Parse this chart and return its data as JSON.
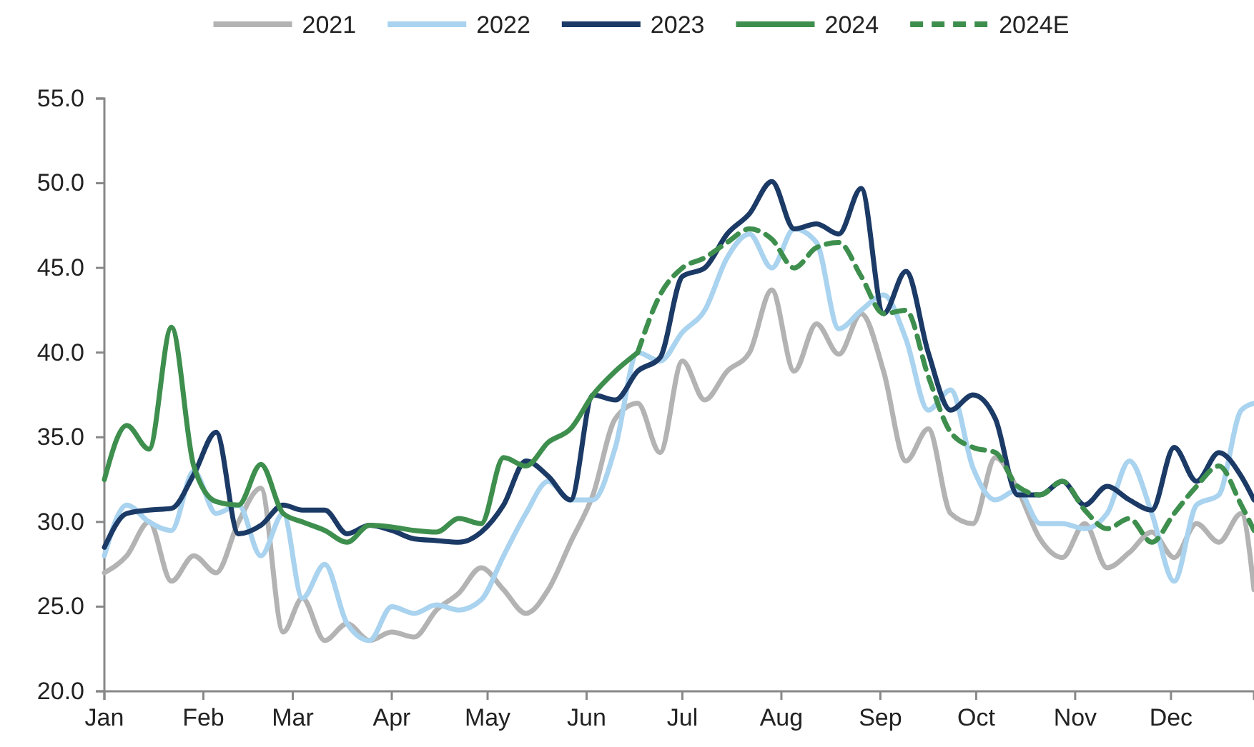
{
  "chart_data": {
    "type": "line",
    "x": [
      "--01-01",
      "--01-08",
      "--01-15",
      "--01-22",
      "--01-29",
      "--02-05",
      "--02-12",
      "--02-19",
      "--02-26",
      "--03-04",
      "--03-11",
      "--03-18",
      "--03-25",
      "--04-01",
      "--04-08",
      "--04-15",
      "--04-22",
      "--04-29",
      "--05-06",
      "--05-13",
      "--05-20",
      "--05-27",
      "--06-03",
      "--06-10",
      "--06-17",
      "--06-24",
      "--07-01",
      "--07-08",
      "--07-15",
      "--07-22",
      "--07-29",
      "--08-05",
      "--08-12",
      "--08-19",
      "--08-26",
      "--09-02",
      "--09-09",
      "--09-16",
      "--09-23",
      "--09-30",
      "--10-07",
      "--10-14",
      "--10-21",
      "--10-28",
      "--11-04",
      "--11-11",
      "--11-18",
      "--11-25",
      "--12-02",
      "--12-09",
      "--12-16",
      "--12-23",
      "--12-27"
    ],
    "series": [
      {
        "name": "2021",
        "color": "#b3b3b3",
        "values": [
          27,
          28,
          30,
          26.5,
          28,
          27,
          30,
          32,
          23.5,
          25.5,
          23,
          24,
          23,
          23.5,
          23.2,
          24.8,
          25.8,
          27.3,
          26,
          24.6,
          26,
          28.8,
          31.6,
          36.1,
          37,
          34.1,
          39.5,
          37.2,
          38.9,
          40,
          43.7,
          38.9,
          41.7,
          39.9,
          42.3,
          38.9,
          33.6,
          35.5,
          30.5,
          29.9,
          33.8,
          31.9,
          29,
          27.9,
          29.9,
          27.3,
          28.2,
          29.4,
          27.9,
          29.9,
          28.8,
          30.5,
          26
        ]
      },
      {
        "name": "2022",
        "color": "#a9d3ef",
        "values": [
          28,
          31,
          30,
          29.5,
          33,
          30.5,
          31,
          28,
          30.5,
          25.5,
          27.5,
          24,
          23,
          25,
          24.6,
          25.1,
          24.8,
          25.4,
          28,
          30.5,
          32.4,
          31.3,
          31.3,
          34.4,
          40,
          39.5,
          41.2,
          42.5,
          45.6,
          47,
          45,
          47.3,
          46.5,
          41.4,
          42.5,
          43.4,
          40.8,
          36.6,
          37.8,
          33.2,
          31.3,
          31.9,
          29.9,
          29.9,
          29.6,
          30.5,
          33.6,
          30.5,
          26.5,
          31,
          31.6,
          36.6,
          37
        ]
      },
      {
        "name": "2023",
        "color": "#1b3a66",
        "values": [
          28.5,
          30.5,
          30.7,
          30.8,
          32.8,
          35.3,
          29.3,
          29.8,
          31,
          30.7,
          30.7,
          29.3,
          29.8,
          29.5,
          29,
          28.9,
          28.8,
          29.4,
          31,
          33.6,
          32.7,
          31.3,
          37.5,
          37.2,
          38.9,
          39.7,
          44.5,
          45,
          47,
          48.2,
          50.1,
          47.3,
          47.6,
          47,
          49.7,
          42.3,
          44.8,
          40,
          36.6,
          37.5,
          36.1,
          31.6,
          31.6,
          32.4,
          31,
          32.1,
          31.3,
          30.7,
          34.4,
          32.4,
          34.1,
          32.7,
          31.3
        ]
      },
      {
        "name": "2024",
        "color": "#3e8f4e",
        "values": [
          32.5,
          35.7,
          34.3,
          41.5,
          33.3,
          31.2,
          31,
          33.4,
          30.5,
          30,
          29.5,
          28.8,
          29.8,
          29.7,
          29.5,
          29.4,
          30.2,
          29.9,
          33.8,
          33.3,
          34.7,
          35.5,
          37.5,
          38.9,
          40,
          null,
          null,
          null,
          null,
          null,
          null,
          null,
          null,
          null,
          null,
          null,
          null,
          null,
          null,
          null,
          null,
          null,
          null,
          null,
          null,
          null,
          null,
          null,
          null,
          null,
          null,
          null,
          null
        ]
      },
      {
        "name": "2024E",
        "color": "#3e8f4e",
        "line_style": "dashed",
        "values": [
          null,
          null,
          null,
          null,
          null,
          null,
          null,
          null,
          null,
          null,
          null,
          null,
          null,
          null,
          null,
          null,
          null,
          null,
          null,
          null,
          null,
          null,
          null,
          null,
          40,
          43.4,
          45,
          45.6,
          46.5,
          47.3,
          46.7,
          45,
          46.2,
          46.5,
          44.5,
          42.3,
          42.5,
          38.6,
          35.3,
          34.4,
          34.1,
          32.1,
          31.6,
          32.4,
          30.7,
          29.6,
          30.2,
          28.8,
          30.5,
          32.1,
          33.3,
          31,
          29.5
        ]
      }
    ],
    "xlim": [
      "--01-01",
      "--12-27"
    ],
    "xticks": [
      {
        "value": "--01-01",
        "label": "Jan"
      },
      {
        "value": "--02-01",
        "label": "Feb"
      },
      {
        "value": "--03-01",
        "label": "Mar"
      },
      {
        "value": "--04-01",
        "label": "Apr"
      },
      {
        "value": "--05-01",
        "label": "May"
      },
      {
        "value": "--06-01",
        "label": "Jun"
      },
      {
        "value": "--07-01",
        "label": "Jul"
      },
      {
        "value": "--08-01",
        "label": "Aug"
      },
      {
        "value": "--09-01",
        "label": "Sep"
      },
      {
        "value": "--10-01",
        "label": "Oct"
      },
      {
        "value": "--11-01",
        "label": "Nov"
      },
      {
        "value": "--12-01",
        "label": "Dec"
      }
    ],
    "ylim": [
      20,
      55
    ],
    "yticks": [
      {
        "value": 20,
        "label": "20.0"
      },
      {
        "value": 25,
        "label": "25.0"
      },
      {
        "value": 30,
        "label": "30.0"
      },
      {
        "value": 35,
        "label": "35.0"
      },
      {
        "value": 40,
        "label": "40.0"
      },
      {
        "value": 45,
        "label": "45.0"
      },
      {
        "value": 50,
        "label": "50.0"
      },
      {
        "value": 55,
        "label": "55.0"
      }
    ],
    "grid": false,
    "legend": "top",
    "line_style": "solid"
  }
}
